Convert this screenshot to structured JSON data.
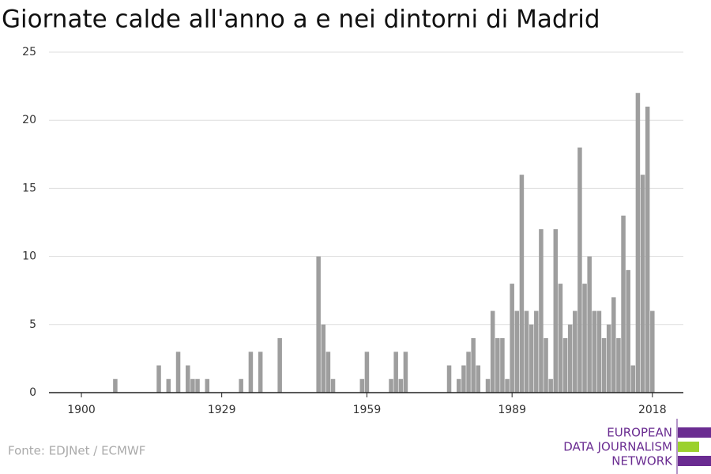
{
  "chart_data": {
    "type": "bar",
    "title": "Giornate calde all'anno a e nei dintorni di Madrid",
    "source": "Fonte: EDJNet / ECMWF",
    "x": [
      1907,
      1916,
      1918,
      1920,
      1922,
      1923,
      1924,
      1926,
      1933,
      1935,
      1937,
      1941,
      1949,
      1950,
      1951,
      1952,
      1958,
      1959,
      1964,
      1965,
      1966,
      1967,
      1976,
      1978,
      1979,
      1980,
      1981,
      1982,
      1984,
      1985,
      1986,
      1987,
      1988,
      1989,
      1990,
      1991,
      1992,
      1993,
      1994,
      1995,
      1996,
      1997,
      1998,
      1999,
      2000,
      2001,
      2002,
      2003,
      2004,
      2005,
      2006,
      2007,
      2008,
      2009,
      2010,
      2011,
      2012,
      2013,
      2014,
      2015,
      2016,
      2017,
      2018
    ],
    "values": [
      1,
      2,
      1,
      3,
      2,
      1,
      1,
      1,
      1,
      3,
      3,
      4,
      10,
      5,
      3,
      1,
      1,
      3,
      1,
      3,
      1,
      3,
      2,
      1,
      2,
      3,
      4,
      2,
      1,
      6,
      4,
      4,
      1,
      8,
      6,
      16,
      6,
      5,
      6,
      12,
      4,
      1,
      12,
      8,
      4,
      5,
      6,
      18,
      8,
      10,
      6,
      6,
      4,
      5,
      7,
      4,
      13,
      9,
      2,
      22,
      16,
      21,
      6
    ],
    "color": "#9e9e9e",
    "xlim": [
      1893.3,
      2024.4
    ],
    "xticks": [
      1900,
      1929,
      1959,
      1989,
      2018
    ],
    "ylim": [
      0,
      25
    ],
    "yticks": [
      0,
      5,
      10,
      15,
      20,
      25
    ],
    "grid": true
  },
  "logo": {
    "lines": [
      "EUROPEAN",
      "DATA JOURNALISM",
      "NETWORK"
    ]
  }
}
